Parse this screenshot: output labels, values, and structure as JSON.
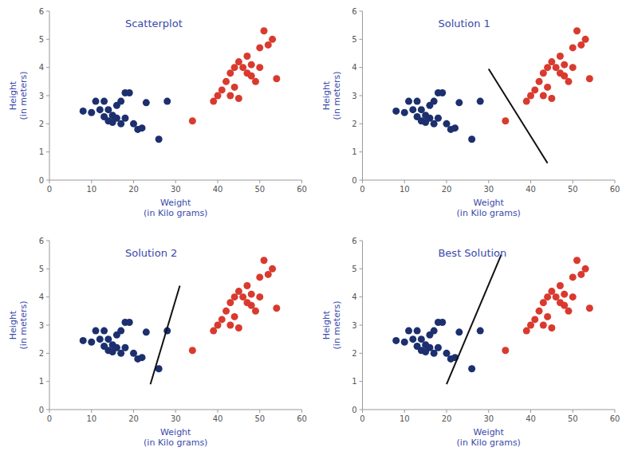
{
  "chart_data": [
    {
      "type": "scatter",
      "title": "Scatterplot",
      "xlabel": "Weight\n(in Kilo grams)",
      "ylabel": "Height\n(in meters)",
      "xlim": [
        0,
        60
      ],
      "ylim": [
        0,
        6
      ],
      "xticks": [
        0,
        10,
        20,
        30,
        40,
        50,
        60
      ],
      "yticks": [
        0,
        1,
        2,
        3,
        4,
        5,
        6
      ],
      "grid": false,
      "series": [
        {
          "type": "scatter",
          "color": "#1c2f6e",
          "x": [
            8,
            10,
            11,
            12,
            13,
            13,
            14,
            14,
            15,
            15,
            16,
            16,
            17,
            17,
            18,
            18,
            19,
            20,
            21,
            22,
            23,
            26,
            28
          ],
          "values": [
            2.45,
            2.4,
            2.8,
            2.5,
            2.8,
            2.25,
            2.1,
            2.5,
            2.05,
            2.3,
            2.2,
            2.65,
            2.0,
            2.8,
            2.2,
            3.1,
            3.1,
            2.0,
            1.8,
            1.85,
            2.75,
            1.45,
            2.8
          ]
        },
        {
          "type": "scatter",
          "color": "#d93a2f",
          "x": [
            34,
            39,
            40,
            41,
            42,
            43,
            43,
            44,
            44,
            45,
            45,
            46,
            47,
            47,
            48,
            48,
            49,
            50,
            50,
            51,
            52,
            53,
            54
          ],
          "values": [
            2.1,
            2.8,
            3.0,
            3.2,
            3.5,
            3.0,
            3.8,
            3.3,
            4.0,
            2.9,
            4.2,
            4.0,
            3.8,
            4.4,
            4.1,
            3.7,
            3.5,
            4.7,
            4.0,
            5.3,
            4.8,
            5.0,
            3.6
          ]
        }
      ]
    },
    {
      "type": "scatter",
      "title": "Solution 1",
      "xlabel": "Weight\n(in Kilo grams)",
      "ylabel": "Height\n(in meters)",
      "xlim": [
        0,
        60
      ],
      "ylim": [
        0,
        6
      ],
      "xticks": [
        0,
        10,
        20,
        30,
        40,
        50,
        60
      ],
      "yticks": [
        0,
        1,
        2,
        3,
        4,
        5,
        6
      ],
      "grid": false,
      "series": [
        {
          "type": "scatter",
          "color": "#1c2f6e",
          "x": [
            8,
            10,
            11,
            12,
            13,
            13,
            14,
            14,
            15,
            15,
            16,
            16,
            17,
            17,
            18,
            18,
            19,
            20,
            21,
            22,
            23,
            26,
            28
          ],
          "values": [
            2.45,
            2.4,
            2.8,
            2.5,
            2.8,
            2.25,
            2.1,
            2.5,
            2.05,
            2.3,
            2.2,
            2.65,
            2.0,
            2.8,
            2.2,
            3.1,
            3.1,
            2.0,
            1.8,
            1.85,
            2.75,
            1.45,
            2.8
          ]
        },
        {
          "type": "scatter",
          "color": "#d93a2f",
          "x": [
            34,
            39,
            40,
            41,
            42,
            43,
            43,
            44,
            44,
            45,
            45,
            46,
            47,
            47,
            48,
            48,
            49,
            50,
            50,
            51,
            52,
            53,
            54
          ],
          "values": [
            2.1,
            2.8,
            3.0,
            3.2,
            3.5,
            3.0,
            3.8,
            3.3,
            4.0,
            2.9,
            4.2,
            4.0,
            3.8,
            4.4,
            4.1,
            3.7,
            3.5,
            4.7,
            4.0,
            5.3,
            4.8,
            5.0,
            3.6
          ]
        },
        {
          "type": "line",
          "color": "#111111",
          "x": [
            30,
            44
          ],
          "values": [
            3.95,
            0.6
          ]
        }
      ]
    },
    {
      "type": "scatter",
      "title": "Solution 2",
      "xlabel": "Weight\n(in Kilo grams)",
      "ylabel": "Height\n(in meters)",
      "xlim": [
        0,
        60
      ],
      "ylim": [
        0,
        6
      ],
      "xticks": [
        0,
        10,
        20,
        30,
        40,
        50,
        60
      ],
      "yticks": [
        0,
        1,
        2,
        3,
        4,
        5,
        6
      ],
      "grid": false,
      "series": [
        {
          "type": "scatter",
          "color": "#1c2f6e",
          "x": [
            8,
            10,
            11,
            12,
            13,
            13,
            14,
            14,
            15,
            15,
            16,
            16,
            17,
            17,
            18,
            18,
            19,
            20,
            21,
            22,
            23,
            26,
            28
          ],
          "values": [
            2.45,
            2.4,
            2.8,
            2.5,
            2.8,
            2.25,
            2.1,
            2.5,
            2.05,
            2.3,
            2.2,
            2.65,
            2.0,
            2.8,
            2.2,
            3.1,
            3.1,
            2.0,
            1.8,
            1.85,
            2.75,
            1.45,
            2.8
          ]
        },
        {
          "type": "scatter",
          "color": "#d93a2f",
          "x": [
            34,
            39,
            40,
            41,
            42,
            43,
            43,
            44,
            44,
            45,
            45,
            46,
            47,
            47,
            48,
            48,
            49,
            50,
            50,
            51,
            52,
            53,
            54
          ],
          "values": [
            2.1,
            2.8,
            3.0,
            3.2,
            3.5,
            3.0,
            3.8,
            3.3,
            4.0,
            2.9,
            4.2,
            4.0,
            3.8,
            4.4,
            4.1,
            3.7,
            3.5,
            4.7,
            4.0,
            5.3,
            4.8,
            5.0,
            3.6
          ]
        },
        {
          "type": "line",
          "color": "#111111",
          "x": [
            24,
            31
          ],
          "values": [
            0.9,
            4.4
          ]
        }
      ]
    },
    {
      "type": "scatter",
      "title": "Best Solution",
      "xlabel": "Weight\n(in Kilo grams)",
      "ylabel": "Height\n(in meters)",
      "xlim": [
        0,
        60
      ],
      "ylim": [
        0,
        6
      ],
      "xticks": [
        0,
        10,
        20,
        30,
        40,
        50,
        60
      ],
      "yticks": [
        0,
        1,
        2,
        3,
        4,
        5,
        6
      ],
      "grid": false,
      "series": [
        {
          "type": "scatter",
          "color": "#1c2f6e",
          "x": [
            8,
            10,
            11,
            12,
            13,
            13,
            14,
            14,
            15,
            15,
            16,
            16,
            17,
            17,
            18,
            18,
            19,
            20,
            21,
            22,
            23,
            26,
            28
          ],
          "values": [
            2.45,
            2.4,
            2.8,
            2.5,
            2.8,
            2.25,
            2.1,
            2.5,
            2.05,
            2.3,
            2.2,
            2.65,
            2.0,
            2.8,
            2.2,
            3.1,
            3.1,
            2.0,
            1.8,
            1.85,
            2.75,
            1.45,
            2.8
          ]
        },
        {
          "type": "scatter",
          "color": "#d93a2f",
          "x": [
            34,
            39,
            40,
            41,
            42,
            43,
            43,
            44,
            44,
            45,
            45,
            46,
            47,
            47,
            48,
            48,
            49,
            50,
            50,
            51,
            52,
            53,
            54
          ],
          "values": [
            2.1,
            2.8,
            3.0,
            3.2,
            3.5,
            3.0,
            3.8,
            3.3,
            4.0,
            2.9,
            4.2,
            4.0,
            3.8,
            4.4,
            4.1,
            3.7,
            3.5,
            4.7,
            4.0,
            5.3,
            4.8,
            5.0,
            3.6
          ]
        },
        {
          "type": "line",
          "color": "#111111",
          "x": [
            20,
            33
          ],
          "values": [
            0.9,
            5.5
          ]
        }
      ]
    }
  ]
}
